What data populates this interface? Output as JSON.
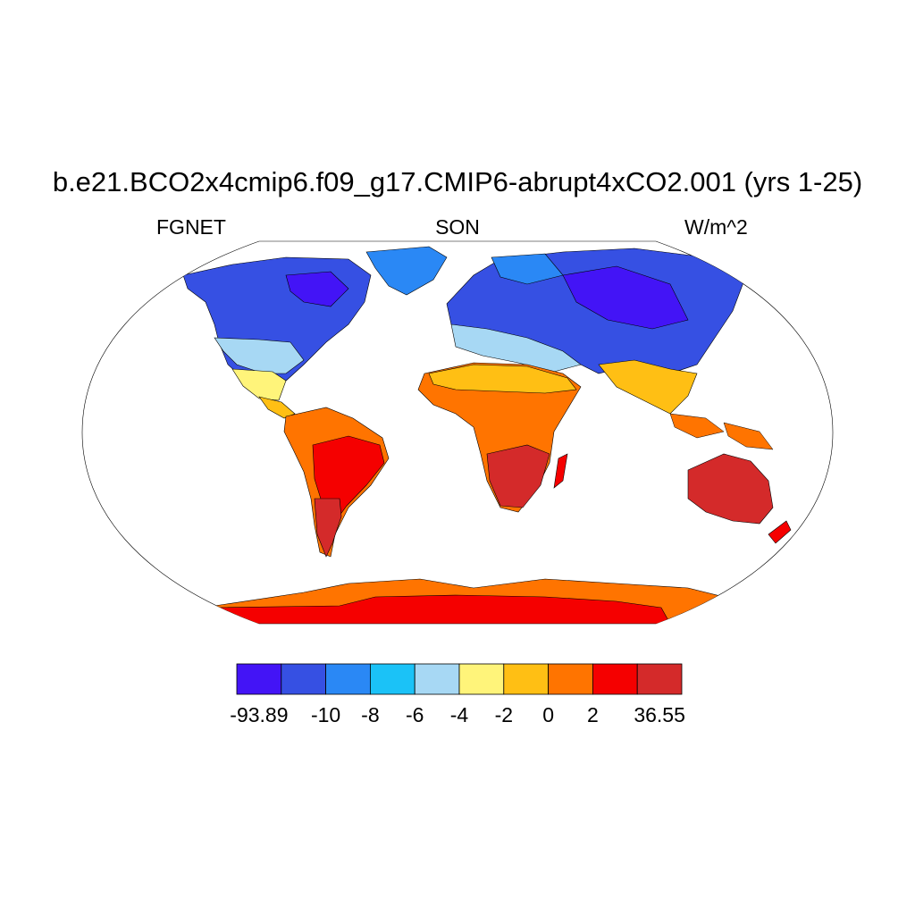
{
  "title": "b.e21.BCO2x4cmip6.f09_g17.CMIP6-abrupt4xCO2.001 (yrs 1-25)",
  "variable": "FGNET",
  "season": "SON",
  "units": "W/m^2",
  "colorbar": {
    "colors": [
      "#4314f6",
      "#3650e3",
      "#2a88f5",
      "#1bc2f7",
      "#a7d8f4",
      "#fff47a",
      "#ffbf14",
      "#ff7400",
      "#f50000",
      "#d42a2a"
    ],
    "labels": [
      "-93.89",
      "-10",
      "-8",
      "-6",
      "-4",
      "-2",
      "0",
      "2",
      "36.55"
    ]
  },
  "map": {
    "projection": "Robinson",
    "regions": [
      {
        "name": "north-america",
        "color": "#3650e3"
      },
      {
        "name": "greenland",
        "color": "#2a88f5"
      },
      {
        "name": "south-america",
        "color": "#d42a2a"
      },
      {
        "name": "africa",
        "color": "#ff7400"
      },
      {
        "name": "eurasia",
        "color": "#3650e3"
      },
      {
        "name": "australia",
        "color": "#d42a2a"
      },
      {
        "name": "antarctica",
        "color": "#f50000"
      }
    ]
  }
}
